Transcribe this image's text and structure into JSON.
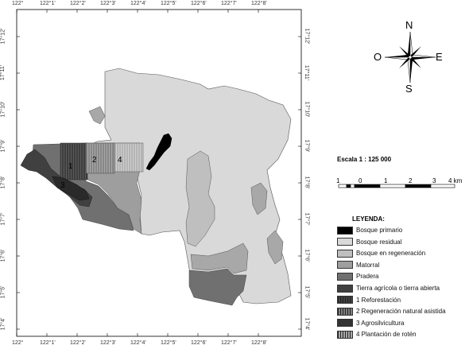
{
  "map": {
    "top_ticks": [
      "122°",
      "122°1'",
      "122°2'",
      "122°3'",
      "122°4'",
      "122°5'",
      "122°6'",
      "122°7'",
      "122°8'"
    ],
    "bottom_ticks": [
      "122°",
      "122°1'",
      "122°2'",
      "122°3'",
      "122°4'",
      "122°5'",
      "122°6'",
      "122°7'",
      "122°8'"
    ],
    "left_ticks": [
      "17°12'",
      "17°11'",
      "17°10'",
      "17°9'",
      "17°8'",
      "17°7'",
      "17°6'",
      "17°5'",
      "17°4'"
    ],
    "right_ticks": [
      "17°12'",
      "17°11'",
      "17°10'",
      "17°9'",
      "17°8'",
      "17°7'",
      "17°6'",
      "17°5'",
      "17°4'"
    ],
    "area_labels": [
      "1",
      "2",
      "4",
      "3"
    ]
  },
  "compass": {
    "n": "N",
    "s": "S",
    "e": "E",
    "w": "O"
  },
  "scale": {
    "title": "Escala 1 : 125 000",
    "numbers": [
      "1",
      "0",
      "1",
      "2",
      "3",
      "4 km"
    ]
  },
  "legend": {
    "title": "LEYENDA:",
    "items": [
      {
        "label": "Bosque primario",
        "color": "#000000",
        "pattern": "solid"
      },
      {
        "label": "Bosque residual",
        "color": "#d9d9d9",
        "pattern": "solid"
      },
      {
        "label": "Bosque en regeneración",
        "color": "#bfbfbf",
        "pattern": "solid"
      },
      {
        "label": "Matorral",
        "color": "#9e9e9e",
        "pattern": "solid"
      },
      {
        "label": "Pradera",
        "color": "#707070",
        "pattern": "solid"
      },
      {
        "label": "Tierra agrícola o tierra abierta",
        "color": "#404040",
        "pattern": "solid"
      },
      {
        "label": "1 Reforestación",
        "color": "#404040",
        "pattern": "vlines"
      },
      {
        "label": "2 Regeneración natural asistida",
        "color": "#808080",
        "pattern": "vlines"
      },
      {
        "label": "3 Agrosilvicultura",
        "color": "#333333",
        "pattern": "solid"
      },
      {
        "label": "4 Plantación de rotén",
        "color": "#aaaaaa",
        "pattern": "vlines"
      }
    ]
  }
}
